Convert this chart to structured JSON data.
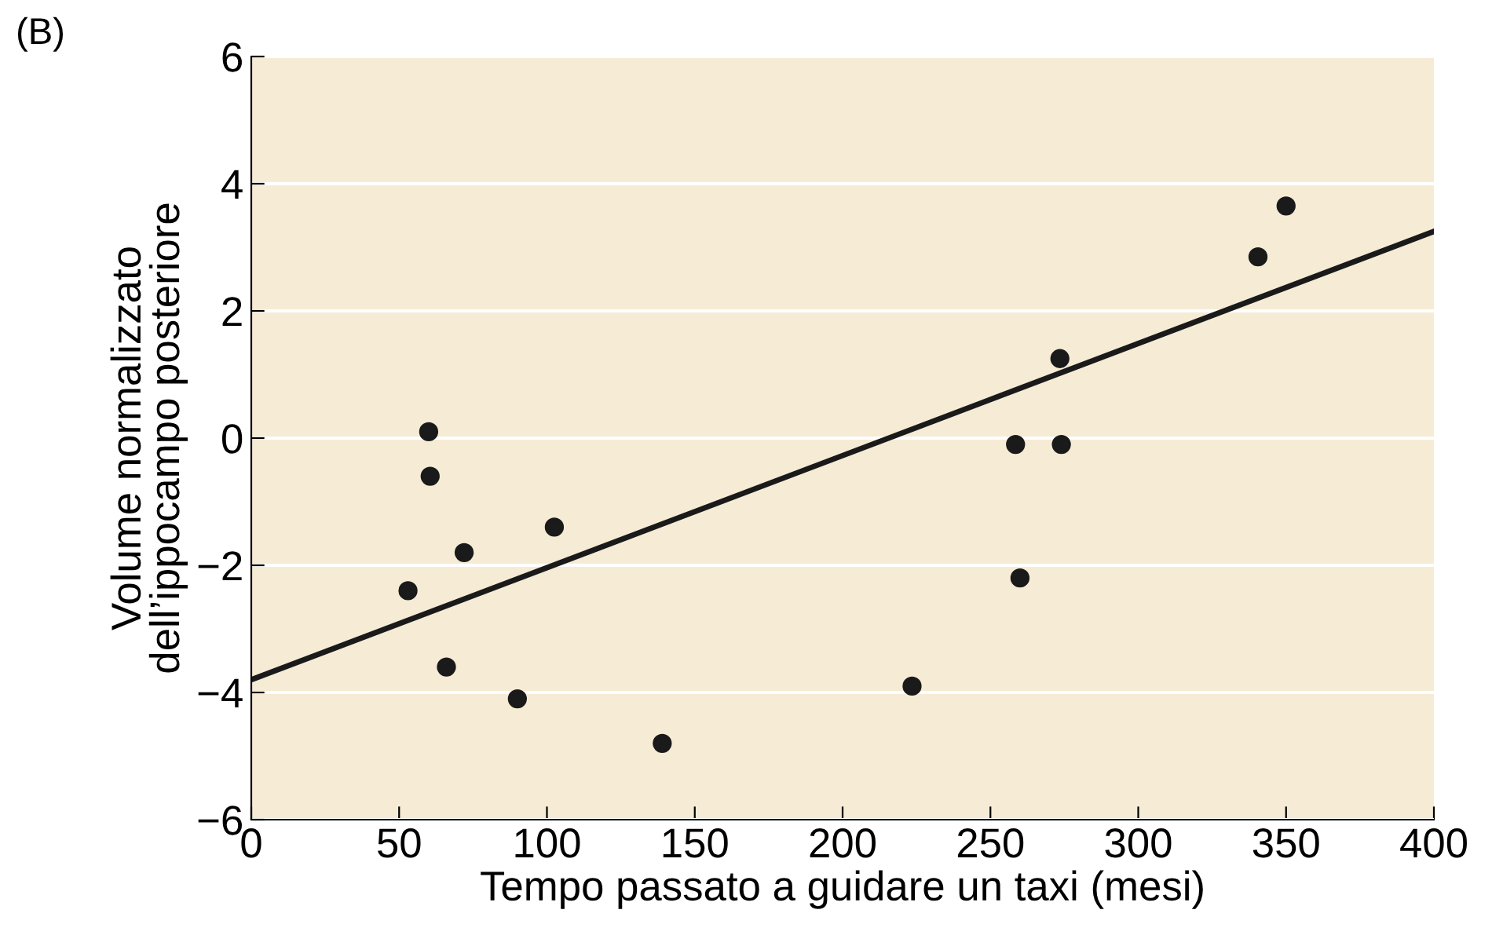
{
  "chart_data": {
    "type": "scatter",
    "xlabel": "Tempo passato a guidare un taxi (mesi)",
    "ylabel": "Volume normalizzato\ndell’ippocampo posteriore",
    "annotations": [
      "(B)"
    ],
    "xlim": [
      0,
      400
    ],
    "ylim": [
      -6,
      6
    ],
    "xticks": [
      0,
      50,
      100,
      150,
      200,
      250,
      300,
      350,
      400
    ],
    "yticks": [
      {
        "value": -6,
        "label": "−6"
      },
      {
        "value": -4,
        "label": "−4"
      },
      {
        "value": -2,
        "label": "−2"
      },
      0,
      2,
      4,
      6
    ],
    "grid": "y",
    "marker": "circle",
    "series": [
      {
        "color": "#1a1a1a",
        "x": [
          53,
          60,
          60.5,
          66,
          72,
          90,
          102.5,
          139,
          223.5,
          258.5,
          260,
          273.5,
          274,
          340.5,
          350
        ],
        "values": [
          -2.4,
          0.1,
          -0.6,
          -3.6,
          -1.8,
          -4.1,
          -1.4,
          -4.8,
          -3.9,
          -0.1,
          -2.2,
          1.25,
          -0.1,
          2.85,
          3.65
        ]
      },
      {
        "type": "line",
        "marker": "none",
        "color": "#1a1a1a",
        "x": [
          0,
          400
        ],
        "values": [
          -3.8,
          3.25
        ]
      }
    ]
  }
}
